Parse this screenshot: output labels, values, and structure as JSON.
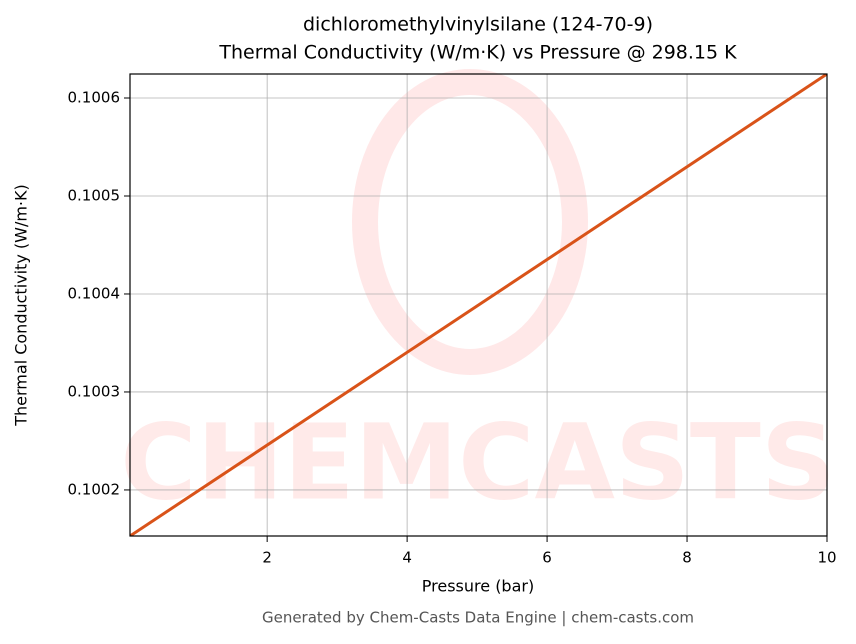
{
  "chart_data": {
    "type": "line",
    "title": "dichloromethylvinylsilane (124-70-9)",
    "subtitle": "Thermal Conductivity (W/m·K) vs Pressure @ 298.15 K",
    "xlabel": "Pressure (bar)",
    "ylabel": "Thermal Conductivity (W/m·K)",
    "x": [
      0.04,
      10
    ],
    "series": [
      {
        "name": "Thermal Conductivity",
        "color": "#d95319",
        "values": [
          0.100153,
          0.1006245
        ]
      }
    ],
    "xlim": [
      0.04,
      10
    ],
    "ylim": [
      0.100153,
      0.1006245
    ],
    "xticks": [
      2,
      4,
      6,
      8,
      10
    ],
    "yticks": [
      0.1002,
      0.1003,
      0.1004,
      0.1005,
      0.1006
    ],
    "grid": true,
    "watermark": "CHEMCASTS",
    "footer": "Generated by Chem-Casts Data Engine | chem-casts.com"
  }
}
